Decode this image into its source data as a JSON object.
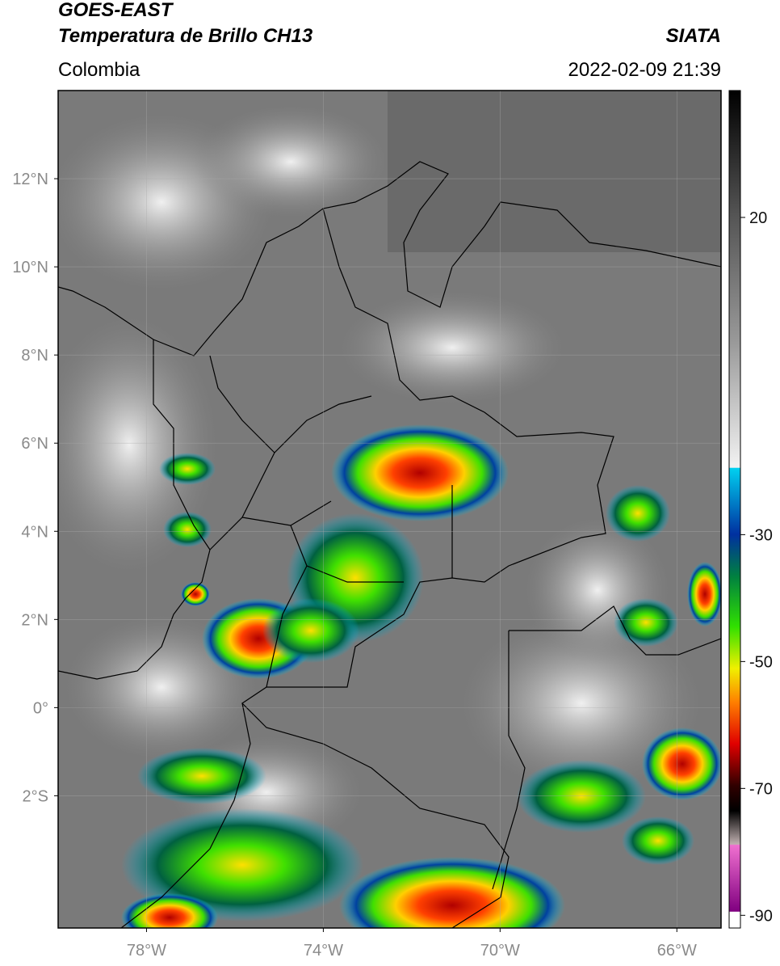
{
  "header": {
    "title": "GOES-EAST",
    "subtitle": "Temperatura de Brillo CH13",
    "source": "SIATA",
    "region": "Colombia",
    "datetime": "2022-02-09 21:39"
  },
  "map": {
    "xlim": [
      -80,
      -65
    ],
    "ylim": [
      -5,
      14
    ],
    "xticks": [
      {
        "value": -78,
        "label": "78°W"
      },
      {
        "value": -74,
        "label": "74°W"
      },
      {
        "value": -70,
        "label": "70°W"
      },
      {
        "value": -66,
        "label": "66°W"
      }
    ],
    "yticks": [
      {
        "value": 12,
        "label": "12°N"
      },
      {
        "value": 10,
        "label": "10°N"
      },
      {
        "value": 8,
        "label": "8°N"
      },
      {
        "value": 6,
        "label": "6°N"
      },
      {
        "value": 4,
        "label": "4°N"
      },
      {
        "value": 2,
        "label": "2°N"
      },
      {
        "value": 0,
        "label": "0°"
      },
      {
        "value": -2,
        "label": "2°S"
      }
    ]
  },
  "colorbar": {
    "lim": [
      -92,
      40
    ],
    "ticks": [
      20,
      -30,
      -50,
      -70,
      -90
    ]
  }
}
